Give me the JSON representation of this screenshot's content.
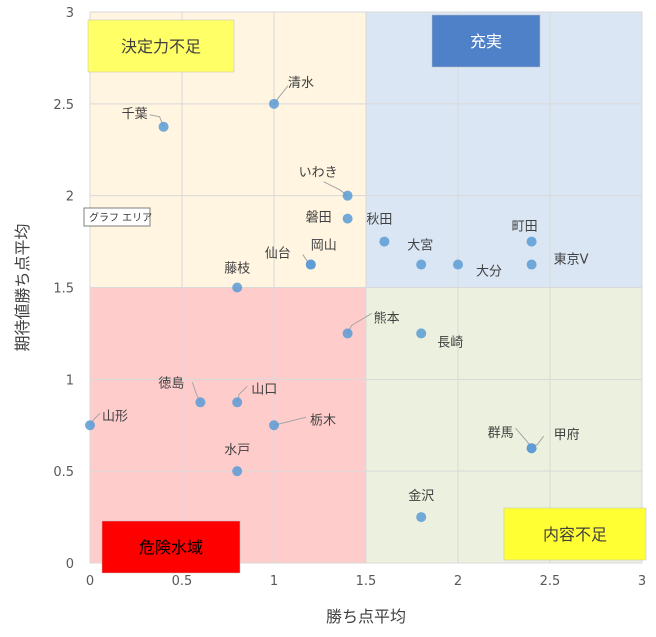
{
  "chart_data": {
    "type": "scatter",
    "title": "",
    "xlabel": "勝ち点平均",
    "ylabel": "期待値勝ち点平均",
    "xlim": [
      0,
      3
    ],
    "ylim": [
      0,
      3
    ],
    "x_ticks": [
      "0",
      "0.5",
      "1",
      "1.5",
      "2",
      "2.5",
      "3"
    ],
    "y_ticks": [
      "0",
      "0.5",
      "1",
      "1.5",
      "2",
      "2.5",
      "3"
    ],
    "grid": true,
    "quadrant_split": {
      "x": 1.5,
      "y": 1.5
    },
    "quadrants": [
      {
        "key": "top-left",
        "label": "決定力不足",
        "fill": "#fff5e1",
        "label_bg": "#ffff66",
        "label_fg": "#404040"
      },
      {
        "key": "top-right",
        "label": "充実",
        "fill": "#dae6f4",
        "label_bg": "#4f81c8",
        "label_fg": "#ffffff"
      },
      {
        "key": "bottom-left",
        "label": "危険水域",
        "fill": "#ffcccc",
        "label_bg": "#ff0000",
        "label_fg": "#000000"
      },
      {
        "key": "bottom-right",
        "label": "内容不足",
        "fill": "#ebf1de",
        "label_bg": "#ffff33",
        "label_fg": "#404040"
      }
    ],
    "points": [
      {
        "name": "清水",
        "x": 1.0,
        "y": 2.5
      },
      {
        "name": "千葉",
        "x": 0.4,
        "y": 2.375
      },
      {
        "name": "いわき",
        "x": 1.4,
        "y": 2.0
      },
      {
        "name": "磐田",
        "x": 1.4,
        "y": 1.875
      },
      {
        "name": "秋田",
        "x": 1.6,
        "y": 1.75
      },
      {
        "name": "町田",
        "x": 2.4,
        "y": 1.75
      },
      {
        "name": "大宮",
        "x": 1.8,
        "y": 1.625
      },
      {
        "name": "大分",
        "x": 2.0,
        "y": 1.625
      },
      {
        "name": "東京V",
        "x": 2.4,
        "y": 1.625
      },
      {
        "name": "仙台",
        "x": 1.2,
        "y": 1.625
      },
      {
        "name": "岡山",
        "x": 1.2,
        "y": 1.625
      },
      {
        "name": "藤枝",
        "x": 0.8,
        "y": 1.5
      },
      {
        "name": "熊本",
        "x": 1.4,
        "y": 1.25
      },
      {
        "name": "長崎",
        "x": 1.8,
        "y": 1.25
      },
      {
        "name": "徳島",
        "x": 0.6,
        "y": 0.875
      },
      {
        "name": "山口",
        "x": 0.8,
        "y": 0.875
      },
      {
        "name": "山形",
        "x": 0.0,
        "y": 0.75
      },
      {
        "name": "栃木",
        "x": 1.0,
        "y": 0.75
      },
      {
        "name": "水戸",
        "x": 0.8,
        "y": 0.5
      },
      {
        "name": "群馬",
        "x": 2.4,
        "y": 0.625
      },
      {
        "name": "甲府",
        "x": 2.4,
        "y": 0.625
      },
      {
        "name": "金沢",
        "x": 1.8,
        "y": 0.25
      }
    ],
    "point_color": "#5b9bd5",
    "tooltip": "グラフ エリア"
  }
}
